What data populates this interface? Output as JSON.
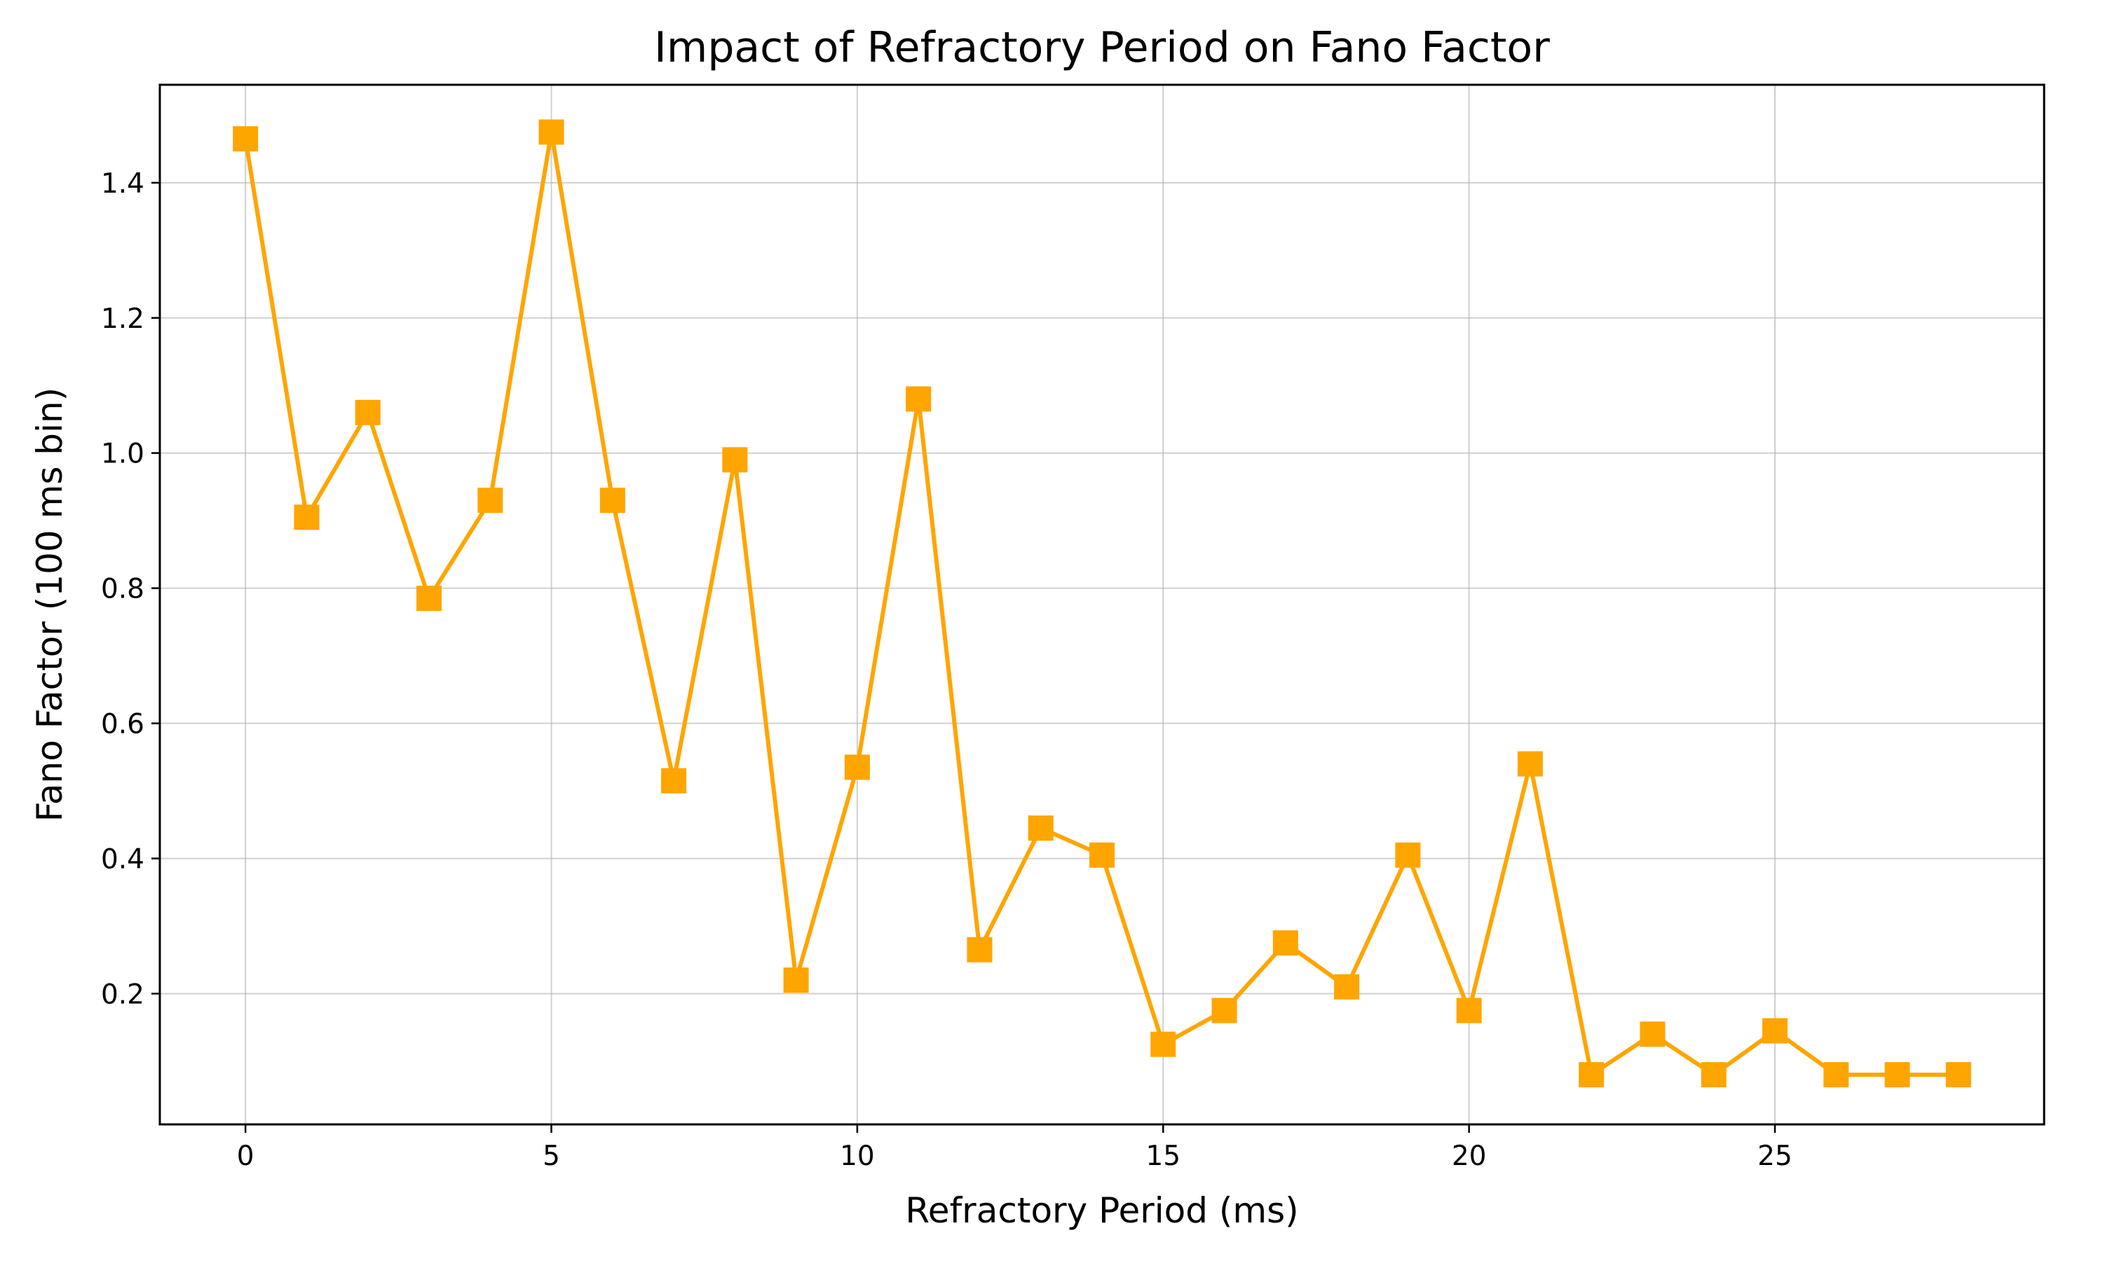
{
  "chart_data": {
    "type": "line",
    "title": "Impact of Refractory Period on Fano Factor",
    "xlabel": "Refractory Period (ms)",
    "ylabel": "Fano Factor (100 ms bin)",
    "xlim": [
      -1.4,
      29.4
    ],
    "ylim": [
      0.0065,
      1.545
    ],
    "xticks": [
      0,
      5,
      10,
      15,
      20,
      25
    ],
    "xtick_labels": [
      "0",
      "5",
      "10",
      "15",
      "20",
      "25"
    ],
    "yticks": [
      0.2,
      0.4,
      0.6,
      0.8,
      1.0,
      1.2,
      1.4
    ],
    "ytick_labels": [
      "0.2",
      "0.4",
      "0.6",
      "0.8",
      "1.0",
      "1.2",
      "1.4"
    ],
    "grid": true,
    "color": "#FFA500",
    "marker": "square",
    "x": [
      0,
      1,
      2,
      3,
      4,
      5,
      6,
      7,
      8,
      9,
      10,
      11,
      12,
      13,
      14,
      15,
      16,
      17,
      18,
      19,
      20,
      21,
      22,
      23,
      24,
      25,
      26,
      27,
      28
    ],
    "y": [
      1.465,
      0.905,
      1.06,
      0.785,
      0.93,
      1.475,
      0.93,
      0.515,
      0.99,
      0.22,
      0.535,
      1.08,
      0.265,
      0.445,
      0.405,
      0.125,
      0.175,
      0.275,
      0.21,
      0.405,
      0.175,
      0.54,
      0.08,
      0.14,
      0.08,
      0.145,
      0.08,
      0.08,
      0.08
    ]
  }
}
